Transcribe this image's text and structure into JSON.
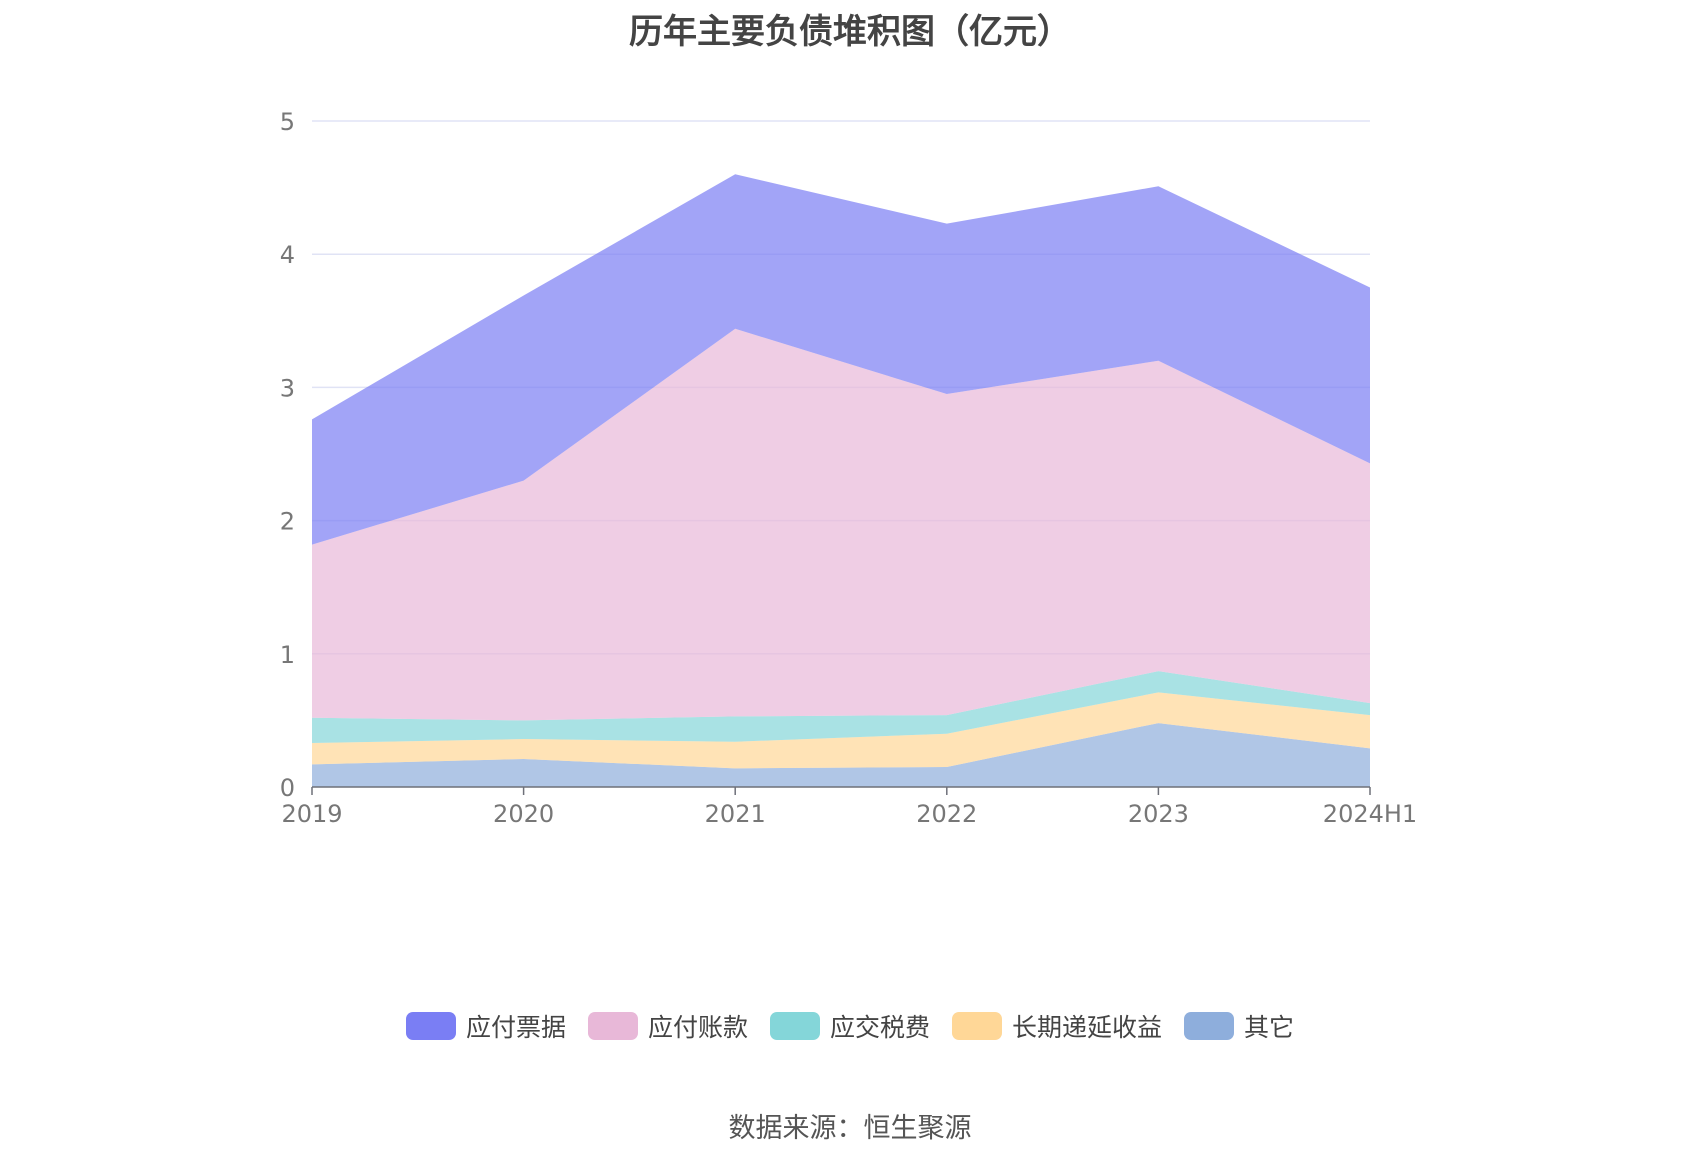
{
  "chart_data": {
    "type": "area",
    "stacked": true,
    "title": "历年主要负债堆积图（亿元）",
    "categories": [
      "2019",
      "2020",
      "2021",
      "2022",
      "2023",
      "2024H1"
    ],
    "ylim": [
      0,
      5
    ],
    "yticks": [
      "0",
      "1",
      "2",
      "3",
      "4",
      "5"
    ],
    "grid": true,
    "legend_position": "bottom",
    "series": [
      {
        "name": "其它",
        "color": "#8eaedc",
        "values": [
          0.17,
          0.21,
          0.14,
          0.15,
          0.48,
          0.29
        ]
      },
      {
        "name": "长期递延收益",
        "color": "#ffd797",
        "values": [
          0.16,
          0.15,
          0.2,
          0.25,
          0.23,
          0.25
        ]
      },
      {
        "name": "应交税费",
        "color": "#84d6d9",
        "values": [
          0.19,
          0.14,
          0.19,
          0.14,
          0.16,
          0.09
        ]
      },
      {
        "name": "应付账款",
        "color": "#e8b8d8",
        "values": [
          1.3,
          1.8,
          2.91,
          2.41,
          2.33,
          1.8
        ]
      },
      {
        "name": "应付票据",
        "color": "#7a7ef4",
        "values": [
          0.94,
          1.39,
          1.16,
          1.28,
          1.31,
          1.32
        ]
      }
    ]
  },
  "legend_order": [
    "应付票据",
    "应付账款",
    "应交税费",
    "长期递延收益",
    "其它"
  ],
  "source_text": "数据来源：恒生聚源"
}
